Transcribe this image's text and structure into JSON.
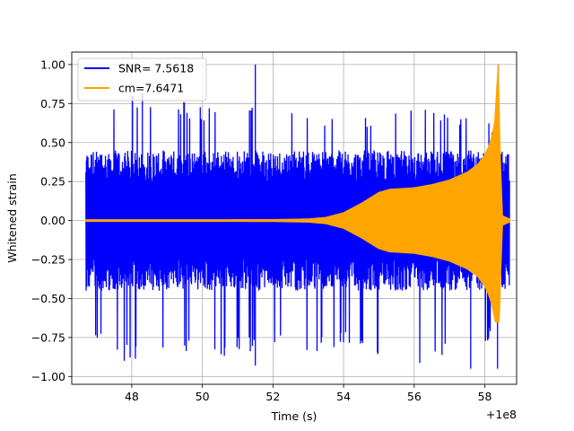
{
  "chart_data": {
    "type": "line",
    "title": "",
    "xlabel": "Time (s)",
    "ylabel": "Whitened strain",
    "x_offset_text": "+1e8",
    "xlim": [
      46.3,
      58.9
    ],
    "ylim": [
      -1.05,
      1.08
    ],
    "xticks": [
      48,
      50,
      52,
      54,
      56,
      58
    ],
    "yticks": [
      -1.0,
      -0.75,
      -0.5,
      -0.25,
      0.0,
      0.25,
      0.5,
      0.75,
      1.0
    ],
    "xtick_labels": [
      "48",
      "50",
      "52",
      "54",
      "56",
      "58"
    ],
    "ytick_labels": [
      "−1.00",
      "−0.75",
      "−0.50",
      "−0.25",
      "0.00",
      "0.25",
      "0.50",
      "0.75",
      "1.00"
    ],
    "grid": true,
    "legend_position": "top-left",
    "series": [
      {
        "name": "SNR= 7.5618",
        "color": "#0000ff",
        "x_start": 46.7,
        "x_end": 58.7,
        "typical_amplitude": 0.45,
        "max": 1.0,
        "min": -0.95,
        "envelope_x": [
          46.7,
          48.0,
          50.0,
          52.0,
          54.0,
          56.0,
          57.0,
          57.7,
          58.0,
          58.2,
          58.35,
          58.45,
          58.7
        ],
        "envelope_upper": [
          0.72,
          0.82,
          0.75,
          0.72,
          0.7,
          0.72,
          0.72,
          0.7,
          0.62,
          0.65,
          1.0,
          0.45,
          0.42
        ],
        "envelope_lower": [
          -0.75,
          -0.93,
          -0.88,
          -0.87,
          -0.82,
          -0.95,
          -0.88,
          -0.82,
          -0.78,
          -0.8,
          -0.95,
          -0.7,
          -0.62
        ]
      },
      {
        "name": "cm=7.6471",
        "color": "#ffa500",
        "envelope_x": [
          46.7,
          48.0,
          50.0,
          52.0,
          53.0,
          53.5,
          54.0,
          54.5,
          55.0,
          55.3,
          56.0,
          56.5,
          57.0,
          57.5,
          57.8,
          58.0,
          58.1,
          58.2,
          58.28,
          58.33,
          58.38,
          58.43,
          58.5,
          58.7
        ],
        "envelope_upper": [
          0.005,
          0.005,
          0.005,
          0.006,
          0.01,
          0.02,
          0.05,
          0.11,
          0.18,
          0.2,
          0.21,
          0.23,
          0.26,
          0.31,
          0.36,
          0.42,
          0.47,
          0.54,
          0.63,
          0.82,
          1.0,
          0.45,
          0.03,
          0.01
        ],
        "max": 1.0,
        "min": -0.65
      }
    ]
  },
  "legend": {
    "items": [
      {
        "label": "SNR= 7.5618",
        "color": "#0000ff"
      },
      {
        "label": "cm=7.6471",
        "color": "#ffa500"
      }
    ]
  }
}
